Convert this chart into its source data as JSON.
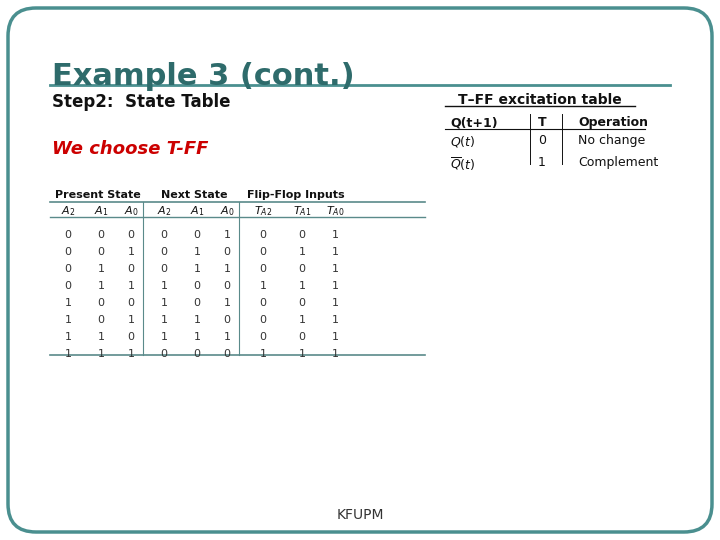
{
  "title": "Example 3 (cont.)",
  "title_color": "#2e6b6b",
  "step_label": "Step2:  State Table",
  "we_choose": "We choose T-FF",
  "we_choose_color": "#cc0000",
  "tff_title": "T–FF excitation table",
  "tff_header": [
    "Q(t+1)",
    "T",
    "Operation"
  ],
  "main_table_headers": [
    "Present State",
    "Next State",
    "Flip-Flop Inputs"
  ],
  "main_rows": [
    [
      "0",
      "0",
      "0",
      "0",
      "0",
      "1",
      "0",
      "0",
      "1"
    ],
    [
      "0",
      "0",
      "1",
      "0",
      "1",
      "0",
      "0",
      "1",
      "1"
    ],
    [
      "0",
      "1",
      "0",
      "0",
      "1",
      "1",
      "0",
      "0",
      "1"
    ],
    [
      "0",
      "1",
      "1",
      "1",
      "0",
      "0",
      "1",
      "1",
      "1"
    ],
    [
      "1",
      "0",
      "0",
      "1",
      "0",
      "1",
      "0",
      "0",
      "1"
    ],
    [
      "1",
      "0",
      "1",
      "1",
      "1",
      "0",
      "0",
      "1",
      "1"
    ],
    [
      "1",
      "1",
      "0",
      "1",
      "1",
      "1",
      "0",
      "0",
      "1"
    ],
    [
      "1",
      "1",
      "1",
      "0",
      "0",
      "0",
      "1",
      "1",
      "1"
    ]
  ],
  "footer": "KFUPM",
  "bg_color": "#ffffff",
  "border_color": "#4a8f8f",
  "line_color": "#4a8f8f",
  "table_line_color": "#5a8a8a"
}
